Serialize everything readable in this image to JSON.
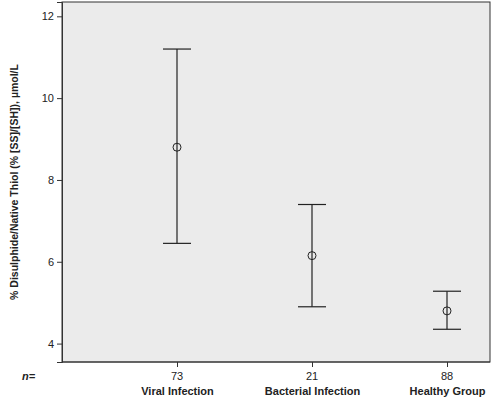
{
  "chart_data": {
    "type": "errorbar",
    "y_label": "% Disulphide/Native Thiol (% [SS]/[SH]), µmol/L",
    "categories": [
      "Viral Infection",
      "Bacterial Infection",
      "Healthy Group"
    ],
    "values": [
      8.8,
      6.15,
      4.8
    ],
    "error_low": [
      6.45,
      4.9,
      4.35
    ],
    "error_high": [
      11.2,
      7.4,
      5.28
    ],
    "n_label": "n=",
    "n": [
      73,
      21,
      88
    ],
    "ylim": [
      3.55,
      12.35
    ],
    "yticks": [
      4,
      6,
      8,
      10,
      12
    ],
    "grid": false,
    "color": "#222222"
  }
}
